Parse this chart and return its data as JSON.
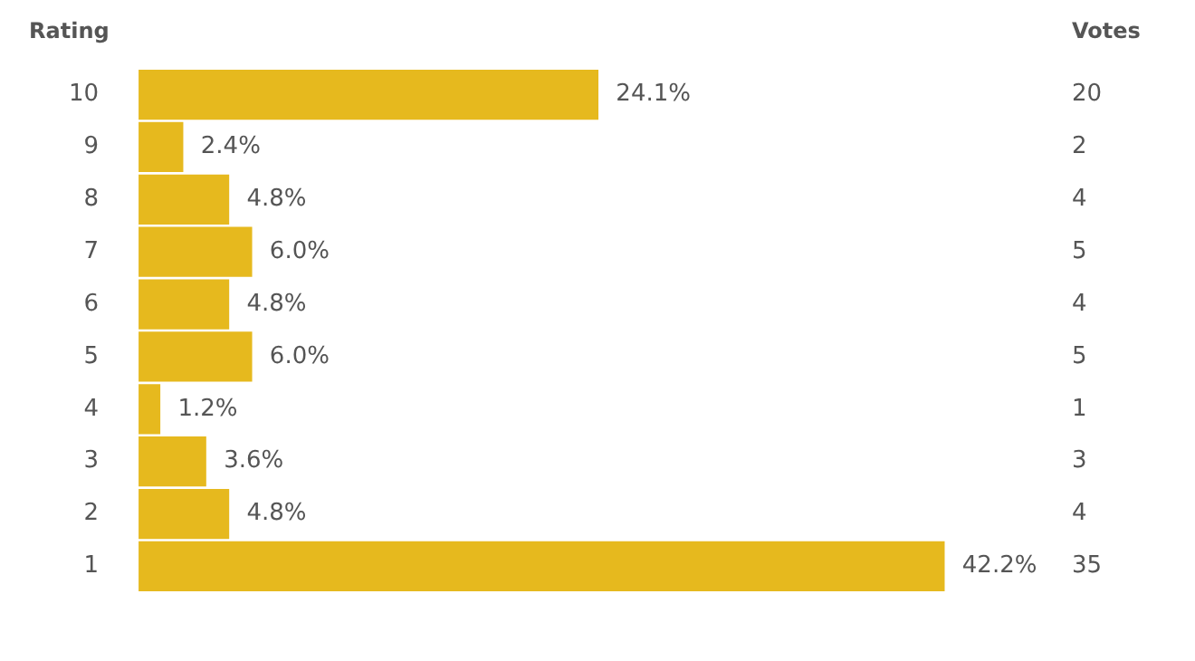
{
  "chart_data": {
    "type": "bar",
    "orientation": "horizontal",
    "ylabel": "Rating",
    "categories": [
      "10",
      "9",
      "8",
      "7",
      "6",
      "5",
      "4",
      "3",
      "2",
      "1"
    ],
    "values": [
      24.1,
      2.4,
      4.8,
      6.0,
      4.8,
      6.0,
      1.2,
      3.6,
      4.8,
      42.2
    ],
    "value_labels": [
      "24.1%",
      "2.4%",
      "4.8%",
      "6.0%",
      "4.8%",
      "6.0%",
      "1.2%",
      "3.6%",
      "4.8%",
      "42.2%"
    ],
    "color": "#e6b91e",
    "annotations": [
      "Votes",
      "20",
      "2",
      "4",
      "5",
      "4",
      "5",
      "1",
      "3",
      "4",
      "35"
    ],
    "grid": false,
    "legend": false
  }
}
